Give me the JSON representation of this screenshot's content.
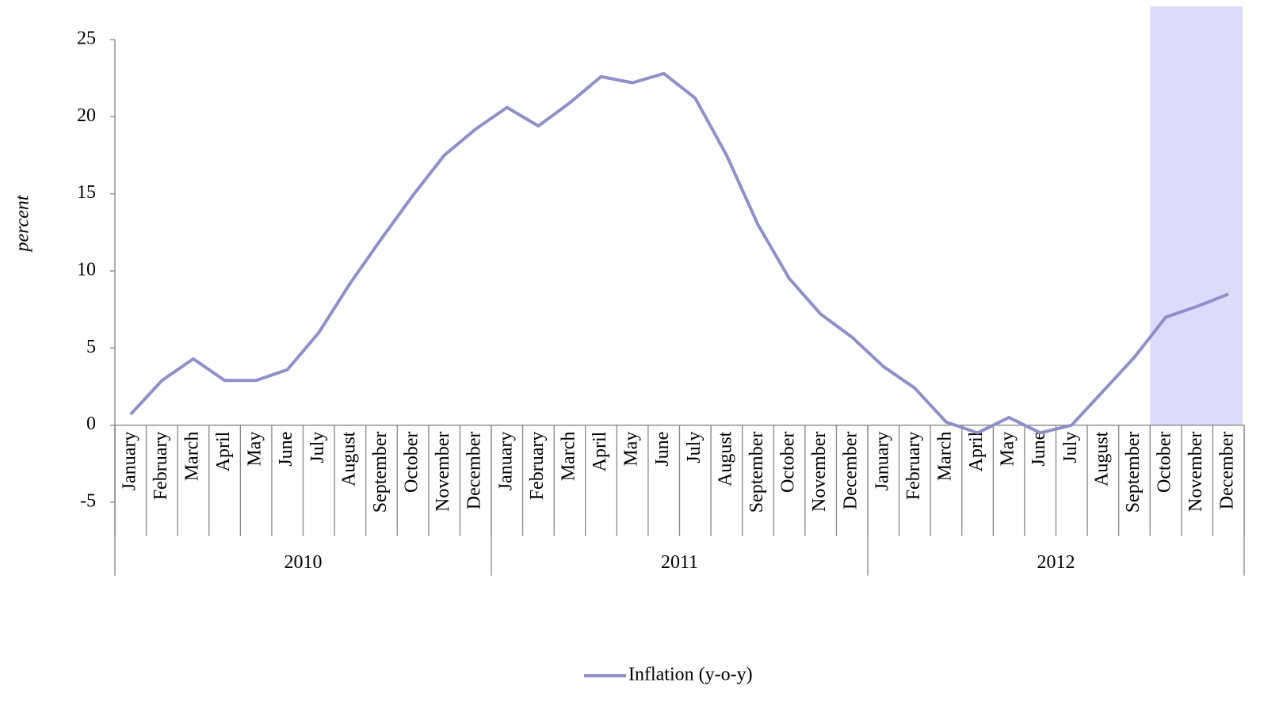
{
  "chart_data": {
    "type": "line",
    "y_label": "percent",
    "categories": [
      "January",
      "February",
      "March",
      "April",
      "May",
      "June",
      "July",
      "August",
      "September",
      "October",
      "November",
      "December",
      "January",
      "February",
      "March",
      "April",
      "May",
      "June",
      "July",
      "August",
      "September",
      "October",
      "November",
      "December",
      "January",
      "February",
      "March",
      "April",
      "May",
      "June",
      "July",
      "August",
      "September",
      "October",
      "November",
      "December"
    ],
    "groups": [
      {
        "name": "2010",
        "span": 12
      },
      {
        "name": "2011",
        "span": 12
      },
      {
        "name": "2012",
        "span": 12
      }
    ],
    "series": [
      {
        "name": "Inflation (y-o-y)",
        "color": "#8f8fc9",
        "values": [
          0.7,
          2.9,
          4.3,
          2.9,
          2.9,
          3.6,
          6.0,
          9.2,
          12.1,
          14.9,
          17.5,
          19.2,
          20.6,
          19.4,
          20.9,
          22.6,
          22.2,
          22.8,
          21.2,
          17.5,
          13.0,
          9.5,
          7.2,
          5.7,
          3.8,
          2.4,
          0.2,
          -0.5,
          0.5,
          -0.5,
          0.0,
          2.2,
          4.4,
          7.0,
          7.7,
          8.5
        ]
      }
    ],
    "highlight": {
      "start": 33,
      "end": 35,
      "color": "#dcdcfa"
    },
    "ylim": [
      -5,
      25
    ],
    "yticks": [
      -5,
      0,
      5,
      10,
      15,
      20,
      25
    ],
    "legend": "bottom"
  }
}
